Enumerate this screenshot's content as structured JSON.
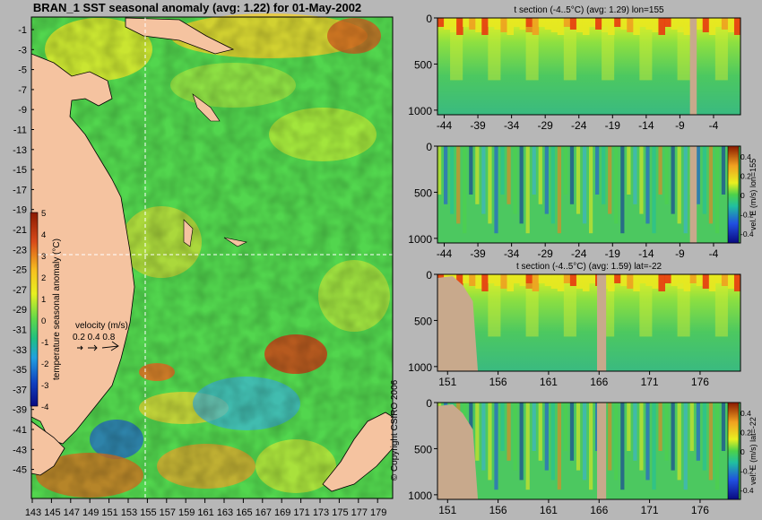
{
  "map": {
    "title": "BRAN_1 SST seasonal anomaly (avg: 1.22) for 01-May-2002",
    "y_ticks": [
      "-1",
      "-3",
      "-5",
      "-7",
      "-9",
      "-11",
      "-13",
      "-15",
      "-17",
      "-19",
      "-21",
      "-23",
      "-25",
      "-27",
      "-29",
      "-31",
      "-33",
      "-35",
      "-37",
      "-39",
      "-41",
      "-43",
      "-45"
    ],
    "x_ticks": [
      "143",
      "145",
      "147",
      "149",
      "151",
      "153",
      "155",
      "157",
      "159",
      "161",
      "163",
      "165",
      "167",
      "169",
      "171",
      "173",
      "175",
      "177",
      "179"
    ],
    "colorbar": {
      "label": "temperature seasonal anomaly (°C)",
      "ticks": [
        "5",
        "4",
        "3",
        "2",
        "1",
        "0",
        "-1",
        "-2",
        "-3",
        "-4"
      ],
      "range": [
        -4,
        5
      ]
    },
    "velocity_legend": {
      "title": "velocity (m/s)",
      "values": "0.2 0.4 0.8"
    },
    "crosshair": {
      "lon": 155,
      "lat": -22
    }
  },
  "copyright": "© Copyright CSIRO 2006",
  "colors": {
    "background": "#b7b7b7",
    "land": "#f5c3a0",
    "section_land": "#c8a98c",
    "text": "#000000"
  },
  "chart_data": [
    {
      "type": "heatmap",
      "title": "t section (-4..5°C) (avg: 1.29) lon=155",
      "x_ticks": [
        "-44",
        "-39",
        "-34",
        "-29",
        "-24",
        "-19",
        "-14",
        "-9",
        "-4"
      ],
      "y_ticks": [
        "0",
        "500",
        "1000"
      ],
      "xlim": [
        -45,
        0
      ],
      "ylim": [
        1050,
        0
      ]
    },
    {
      "type": "heatmap",
      "title": "",
      "x_ticks": [
        "-44",
        "-39",
        "-34",
        "-29",
        "-24",
        "-19",
        "-14",
        "-9",
        "-4"
      ],
      "y_ticks": [
        "0",
        "500",
        "1000"
      ],
      "colorbar_label": "vel. E (m/s) lon=155",
      "colorbar_ticks": [
        "0.4",
        "0.2",
        "0",
        "-0.2",
        "-0.4"
      ],
      "xlim": [
        -45,
        0
      ],
      "ylim": [
        1050,
        0
      ]
    },
    {
      "type": "heatmap",
      "title": "t section (-4..5°C) (avg: 1.59) lat=-22",
      "x_ticks": [
        "151",
        "156",
        "161",
        "166",
        "171",
        "176"
      ],
      "y_ticks": [
        "0",
        "500",
        "1000"
      ],
      "xlim": [
        150,
        180
      ],
      "ylim": [
        1050,
        0
      ]
    },
    {
      "type": "heatmap",
      "title": "",
      "x_ticks": [
        "151",
        "156",
        "161",
        "166",
        "171",
        "176"
      ],
      "y_ticks": [
        "0",
        "500",
        "1000"
      ],
      "colorbar_label": "vel. E (m/s) lat=-22",
      "colorbar_ticks": [
        "0.4",
        "0.2",
        "0",
        "-0.2",
        "-0.4"
      ],
      "xlim": [
        150,
        180
      ],
      "ylim": [
        1050,
        0
      ]
    }
  ]
}
